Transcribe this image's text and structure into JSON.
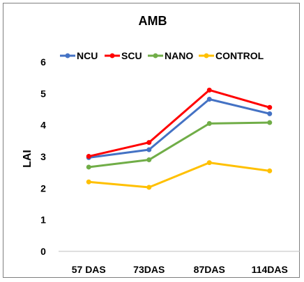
{
  "chart_data": {
    "type": "line",
    "title": "AMB",
    "xlabel": "",
    "ylabel": "LAI",
    "categories": [
      "57 DAS",
      "73DAS",
      "87DAS",
      "114DAS"
    ],
    "ylim": [
      0,
      6
    ],
    "yticks": [
      "0",
      "1",
      "2",
      "3",
      "4",
      "5",
      "6"
    ],
    "grid": false,
    "legend_position": "top",
    "series": [
      {
        "name": "NCU",
        "color": "#4472c4",
        "values": [
          2.97,
          3.22,
          4.82,
          4.36
        ]
      },
      {
        "name": "SCU",
        "color": "#ff0000",
        "values": [
          3.01,
          3.45,
          5.11,
          4.56
        ]
      },
      {
        "name": "NANO",
        "color": "#70ad47",
        "values": [
          2.67,
          2.9,
          4.05,
          4.08
        ]
      },
      {
        "name": "CONTROL",
        "color": "#ffc000",
        "values": [
          2.2,
          2.03,
          2.81,
          2.55
        ]
      }
    ]
  }
}
